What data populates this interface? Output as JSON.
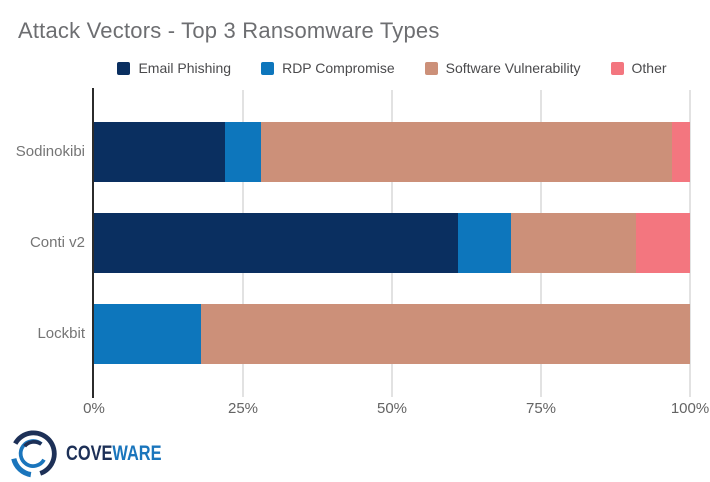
{
  "title": "Attack Vectors - Top 3 Ransomware Types",
  "colors": {
    "axis_line": "#2b2b2b",
    "gridline": "#e2e2e2",
    "tick": "#c4c4c4",
    "title_text": "#6d6e71",
    "legend_text": "#4a4a4c",
    "category_text": "#757575",
    "tick_text": "#646464",
    "logo_navy": "#1d3057",
    "logo_blue": "#1a75bc"
  },
  "chart_data": {
    "type": "bar",
    "orientation": "horizontal",
    "stacked": true,
    "title": "Attack Vectors - Top 3 Ransomware Types",
    "categories": [
      "Sodinokibi",
      "Conti v2",
      "Lockbit"
    ],
    "series": [
      {
        "name": "Email Phishing",
        "color": "#0a2f60",
        "values": [
          22,
          61,
          0
        ]
      },
      {
        "name": "RDP Compromise",
        "color": "#0d76bc",
        "values": [
          6,
          9,
          18
        ]
      },
      {
        "name": "Software Vulnerability",
        "color": "#cc9079",
        "values": [
          69,
          21,
          82
        ]
      },
      {
        "name": "Other",
        "color": "#f3767f",
        "values": [
          3,
          9,
          0
        ]
      }
    ],
    "xlabel": "",
    "ylabel": "",
    "xlim": [
      0,
      100
    ],
    "x_ticks": [
      "0%",
      "25%",
      "50%",
      "75%",
      "100%"
    ],
    "grid": true,
    "legend_position": "top",
    "units": "percent"
  },
  "footer": {
    "logo_text_primary": "COVE",
    "logo_text_secondary": "WARE"
  }
}
